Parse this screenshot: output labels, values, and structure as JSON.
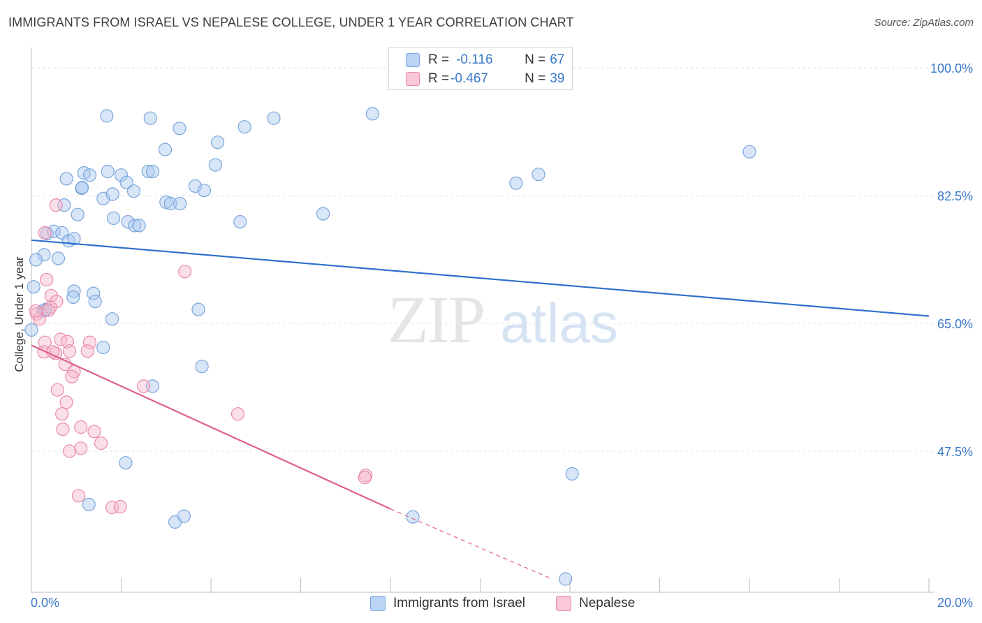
{
  "header": {
    "title": "IMMIGRANTS FROM ISRAEL VS NEPALESE COLLEGE, UNDER 1 YEAR CORRELATION CHART",
    "source": "Source: ZipAtlas.com"
  },
  "watermark": {
    "zip": "ZIP",
    "atlas": "atlas"
  },
  "legend_top": {
    "rows": [
      {
        "r_label": "R = ",
        "r_value": "-0.116",
        "n_label": "N = ",
        "n_value": "67"
      },
      {
        "r_label": "R = ",
        "r_value": "-0.467",
        "n_label": "N = ",
        "n_value": "39"
      }
    ]
  },
  "bottom_legend": {
    "israel": "Immigrants from Israel",
    "nepalese": "Nepalese"
  },
  "colors": {
    "israel_fill": "#a8c8f0",
    "israel_stroke": "#7ba6dc",
    "israel_line": "#2f6fcc",
    "nepal_fill": "#f6b8cb",
    "nepal_stroke": "#e88aa8",
    "nepal_line": "#e0608c",
    "tick_label": "#3a78c9",
    "grid": "#e3e3e3"
  },
  "chart_data": {
    "type": "scatter",
    "title": "IMMIGRANTS FROM ISRAEL VS NEPALESE COLLEGE, UNDER 1 YEAR CORRELATION CHART",
    "xlabel": "",
    "ylabel": "College, Under 1 year",
    "xlim": [
      0,
      20
    ],
    "ylim": [
      30,
      100
    ],
    "x_tick_labels": [
      "0.0%",
      "20.0%"
    ],
    "y_ticks": [
      47.5,
      65.0,
      82.5,
      100.0
    ],
    "y_tick_labels": [
      "47.5%",
      "65.0%",
      "82.5%",
      "100.0%"
    ],
    "grid": "horizontal dashed",
    "series": [
      {
        "name": "Immigrants from Israel",
        "r": -0.116,
        "n": 67,
        "trend": {
          "x": [
            0,
            20
          ],
          "y": [
            76.4,
            66.0
          ]
        },
        "points": [
          [
            1.68,
            93.4
          ],
          [
            2.65,
            93.1
          ],
          [
            3.3,
            91.7
          ],
          [
            4.75,
            91.9
          ],
          [
            5.4,
            93.1
          ],
          [
            7.6,
            93.7
          ],
          [
            2.98,
            88.8
          ],
          [
            4.15,
            89.8
          ],
          [
            16.0,
            88.5
          ],
          [
            0.78,
            84.8
          ],
          [
            1.17,
            85.6
          ],
          [
            1.3,
            85.3
          ],
          [
            1.7,
            85.8
          ],
          [
            2.0,
            85.3
          ],
          [
            2.6,
            85.8
          ],
          [
            2.7,
            85.8
          ],
          [
            4.1,
            86.7
          ],
          [
            10.8,
            84.2
          ],
          [
            11.3,
            85.4
          ],
          [
            1.12,
            83.5
          ],
          [
            1.13,
            83.6
          ],
          [
            1.6,
            82.1
          ],
          [
            1.81,
            82.7
          ],
          [
            2.12,
            84.3
          ],
          [
            2.28,
            83.1
          ],
          [
            3.0,
            81.6
          ],
          [
            3.1,
            81.4
          ],
          [
            3.31,
            81.4
          ],
          [
            3.65,
            83.8
          ],
          [
            3.85,
            83.2
          ],
          [
            0.73,
            81.2
          ],
          [
            1.03,
            79.9
          ],
          [
            1.83,
            79.4
          ],
          [
            2.15,
            78.9
          ],
          [
            2.3,
            78.4
          ],
          [
            2.4,
            78.4
          ],
          [
            4.65,
            78.9
          ],
          [
            6.5,
            80.0
          ],
          [
            0.35,
            77.3
          ],
          [
            0.5,
            77.6
          ],
          [
            0.68,
            77.4
          ],
          [
            0.83,
            76.3
          ],
          [
            0.95,
            76.6
          ],
          [
            0.28,
            74.4
          ],
          [
            0.1,
            73.7
          ],
          [
            0.6,
            73.9
          ],
          [
            0.05,
            70.0
          ],
          [
            0.95,
            69.4
          ],
          [
            0.93,
            68.6
          ],
          [
            1.38,
            69.1
          ],
          [
            1.42,
            68.0
          ],
          [
            0.26,
            66.7
          ],
          [
            0.3,
            66.8
          ],
          [
            0.32,
            66.9
          ],
          [
            1.8,
            65.6
          ],
          [
            3.72,
            66.9
          ],
          [
            0.0,
            64.1
          ],
          [
            1.6,
            61.7
          ],
          [
            3.8,
            59.1
          ],
          [
            2.7,
            56.4
          ],
          [
            2.1,
            45.9
          ],
          [
            12.05,
            44.4
          ],
          [
            1.28,
            40.2
          ],
          [
            8.5,
            38.5
          ],
          [
            3.2,
            37.8
          ],
          [
            3.4,
            38.6
          ],
          [
            11.9,
            30.0
          ]
        ]
      },
      {
        "name": "Nepalese",
        "r": -0.467,
        "n": 39,
        "trend": {
          "x": [
            0,
            8.0
          ],
          "y": [
            62.0,
            39.6
          ]
        },
        "trend_dashed": {
          "x": [
            8.0,
            11.6
          ],
          "y": [
            39.6,
            30.0
          ]
        },
        "points": [
          [
            0.55,
            81.2
          ],
          [
            3.42,
            72.1
          ],
          [
            0.3,
            77.4
          ],
          [
            0.34,
            71.0
          ],
          [
            0.44,
            68.8
          ],
          [
            0.56,
            68.0
          ],
          [
            0.42,
            67.2
          ],
          [
            0.38,
            66.8
          ],
          [
            0.12,
            66.3
          ],
          [
            0.18,
            65.6
          ],
          [
            0.1,
            66.7
          ],
          [
            0.3,
            62.4
          ],
          [
            0.65,
            62.8
          ],
          [
            0.8,
            62.5
          ],
          [
            1.3,
            62.4
          ],
          [
            0.85,
            61.2
          ],
          [
            1.25,
            61.2
          ],
          [
            0.28,
            61.1
          ],
          [
            0.54,
            60.9
          ],
          [
            0.48,
            61.1
          ],
          [
            0.75,
            59.4
          ],
          [
            0.95,
            58.4
          ],
          [
            0.9,
            57.7
          ],
          [
            0.58,
            55.9
          ],
          [
            2.5,
            56.4
          ],
          [
            0.78,
            54.2
          ],
          [
            0.68,
            52.6
          ],
          [
            4.6,
            52.6
          ],
          [
            1.1,
            50.8
          ],
          [
            0.7,
            50.5
          ],
          [
            1.4,
            50.2
          ],
          [
            1.55,
            48.6
          ],
          [
            1.1,
            47.9
          ],
          [
            0.85,
            47.5
          ],
          [
            7.45,
            44.2
          ],
          [
            7.43,
            43.9
          ],
          [
            1.05,
            41.4
          ],
          [
            1.8,
            39.8
          ],
          [
            1.98,
            39.9
          ]
        ]
      }
    ]
  }
}
